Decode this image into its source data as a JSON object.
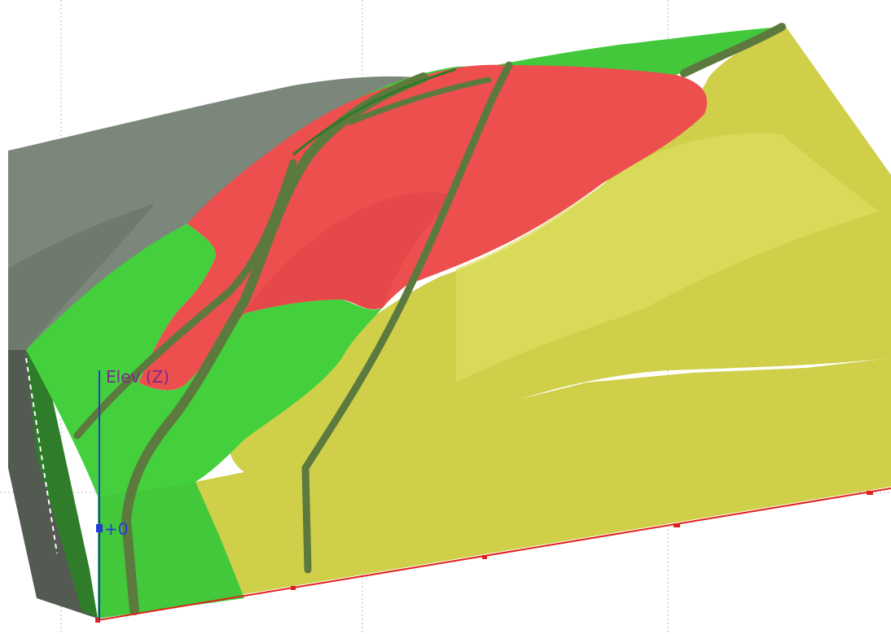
{
  "viewer": {
    "z_axis_label": "Elev (Z)",
    "z_tick_label": "+0"
  },
  "colors": {
    "background": "#ffffff",
    "gridline": "#b8b8b8",
    "terrain_gray": "#7c877b",
    "terrain_gray_dark": "#5c6a5d",
    "layer_bright_green": "#43d03c",
    "layer_dark_green": "#3f8f32",
    "layer_red": "#ec4f4e",
    "layer_yellow": "#cfcf4a",
    "layer_yellow_light": "#dede60",
    "fault_trace": "#5d7a3e",
    "x_axis": "#e0201a",
    "z_axis": "#1f3fd1",
    "z_axis_label": "#7a2a8c"
  }
}
